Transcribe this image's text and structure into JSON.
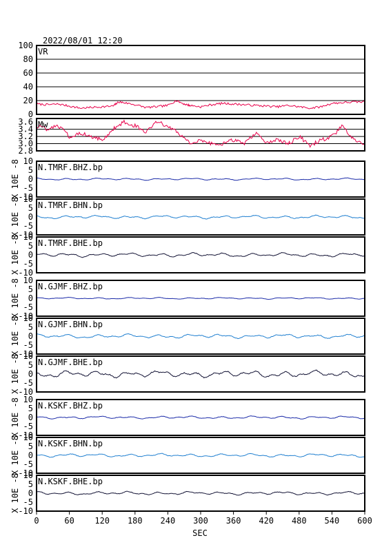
{
  "header": {
    "datetime": "2022/08/01 12:20"
  },
  "x_axis": {
    "label": "SEC",
    "ticks": [
      "0",
      "60",
      "120",
      "180",
      "240",
      "300",
      "360",
      "420",
      "480",
      "540",
      "600"
    ],
    "range": [
      0,
      600
    ]
  },
  "colors": {
    "frame": "#000000",
    "vr_mw": "#e8004a",
    "bhz": "#1a2aa8",
    "bhn": "#1f7fd0",
    "bhe": "#111133"
  },
  "chart_data": [
    {
      "type": "line",
      "name": "vr-panel",
      "label": "VR",
      "ylim": [
        0,
        100
      ],
      "ytick_labels": [
        "0",
        "20",
        "40",
        "60",
        "80",
        "100"
      ],
      "grid": true,
      "color": "#e8004a",
      "series": [
        {
          "name": "",
          "x": [
            0,
            20,
            40,
            60,
            80,
            100,
            120,
            140,
            150,
            160,
            180,
            200,
            220,
            240,
            255,
            270,
            280,
            300,
            320,
            340,
            360,
            380,
            400,
            420,
            440,
            460,
            480,
            500,
            520,
            540,
            560,
            580,
            600
          ],
          "values": [
            15,
            14,
            15,
            12,
            9,
            10,
            11,
            12,
            18,
            17,
            14,
            10,
            11,
            13,
            20,
            15,
            13,
            11,
            14,
            16,
            15,
            14,
            13,
            12,
            11,
            13,
            11,
            9,
            11,
            16,
            17,
            18,
            18
          ]
        }
      ]
    },
    {
      "type": "line",
      "name": "mw-panel",
      "label": "Mw",
      "ylim": [
        2.8,
        3.7
      ],
      "ytick_labels": [
        "2.8",
        "3.0",
        "3.2",
        "3.4",
        "3.6"
      ],
      "grid": true,
      "color": "#e8004a",
      "series": [
        {
          "name": "",
          "x": [
            0,
            20,
            40,
            60,
            80,
            100,
            120,
            140,
            160,
            180,
            200,
            220,
            240,
            260,
            280,
            300,
            320,
            340,
            360,
            380,
            400,
            420,
            440,
            460,
            480,
            500,
            520,
            540,
            560,
            580,
            600
          ],
          "values": [
            3.5,
            3.4,
            3.5,
            3.2,
            3.3,
            3.2,
            3.1,
            3.4,
            3.6,
            3.5,
            3.3,
            3.6,
            3.5,
            3.3,
            3.0,
            3.1,
            3.0,
            3.0,
            3.1,
            3.0,
            3.3,
            3.0,
            3.1,
            3.0,
            3.2,
            2.95,
            3.1,
            3.2,
            3.5,
            3.1,
            3.0
          ]
        }
      ]
    },
    {
      "type": "line",
      "name": "trace-panel-1",
      "label": "N.TMRF.BHZ.bp",
      "ylabel": "X 10E -8",
      "ylim": [
        -10,
        10
      ],
      "ytick_labels": [
        "-10",
        "-5",
        "0",
        "5",
        "10"
      ],
      "color": "#1a2aa8",
      "series": [
        {
          "name": "",
          "amplitude": 0.6,
          "seed": 11
        }
      ]
    },
    {
      "type": "line",
      "name": "trace-panel-2",
      "label": "N.TMRF.BHN.bp",
      "ylabel": "X 10E -8",
      "ylim": [
        -10,
        10
      ],
      "ytick_labels": [
        "-10",
        "-5",
        "0",
        "5",
        "10"
      ],
      "color": "#1f7fd0",
      "series": [
        {
          "name": "",
          "amplitude": 1.0,
          "seed": 23
        }
      ]
    },
    {
      "type": "line",
      "name": "trace-panel-3",
      "label": "N.TMRF.BHE.bp",
      "ylabel": "X 10E -8",
      "ylim": [
        -10,
        10
      ],
      "ytick_labels": [
        "-10",
        "-5",
        "0",
        "5",
        "10"
      ],
      "color": "#111133",
      "series": [
        {
          "name": "",
          "amplitude": 1.2,
          "seed": 37
        }
      ]
    },
    {
      "type": "line",
      "name": "trace-panel-4",
      "label": "N.GJMF.BHZ.bp",
      "ylabel": "X 10E -8",
      "ylim": [
        -10,
        10
      ],
      "ytick_labels": [
        "-10",
        "-5",
        "0",
        "5",
        "10"
      ],
      "color": "#1a2aa8",
      "series": [
        {
          "name": "",
          "amplitude": 0.5,
          "seed": 41
        }
      ]
    },
    {
      "type": "line",
      "name": "trace-panel-5",
      "label": "N.GJMF.BHN.bp",
      "ylabel": "X 10E -8",
      "ylim": [
        -10,
        10
      ],
      "ytick_labels": [
        "-10",
        "-5",
        "0",
        "5",
        "10"
      ],
      "color": "#1f7fd0",
      "series": [
        {
          "name": "",
          "amplitude": 1.2,
          "seed": 53
        }
      ]
    },
    {
      "type": "line",
      "name": "trace-panel-6",
      "label": "N.GJMF.BHE.bp",
      "ylabel": "X 10E -8",
      "ylim": [
        -10,
        10
      ],
      "ytick_labels": [
        "-10",
        "-5",
        "0",
        "5",
        "10"
      ],
      "color": "#111133",
      "series": [
        {
          "name": "",
          "amplitude": 2.0,
          "seed": 67
        }
      ]
    },
    {
      "type": "line",
      "name": "trace-panel-7",
      "label": "N.KSKF.BHZ.bp",
      "ylabel": "X 10E -8",
      "ylim": [
        -10,
        10
      ],
      "ytick_labels": [
        "-10",
        "-5",
        "0",
        "5",
        "10"
      ],
      "color": "#1a2aa8",
      "series": [
        {
          "name": "",
          "amplitude": 0.8,
          "seed": 71
        }
      ]
    },
    {
      "type": "line",
      "name": "trace-panel-8",
      "label": "N.KSKF.BHN.bp",
      "ylabel": "X 10E -8",
      "ylim": [
        -10,
        10
      ],
      "ytick_labels": [
        "-10",
        "-5",
        "0",
        "5",
        "10"
      ],
      "color": "#1f7fd0",
      "series": [
        {
          "name": "",
          "amplitude": 1.0,
          "seed": 83
        }
      ]
    },
    {
      "type": "line",
      "name": "trace-panel-9",
      "label": "N.KSKF.BHE.bp",
      "ylabel": "X 10E -8",
      "ylim": [
        -10,
        10
      ],
      "ytick_labels": [
        "-10",
        "-5",
        "0",
        "5",
        "10"
      ],
      "color": "#111133",
      "series": [
        {
          "name": "",
          "amplitude": 1.0,
          "seed": 97
        }
      ]
    }
  ]
}
